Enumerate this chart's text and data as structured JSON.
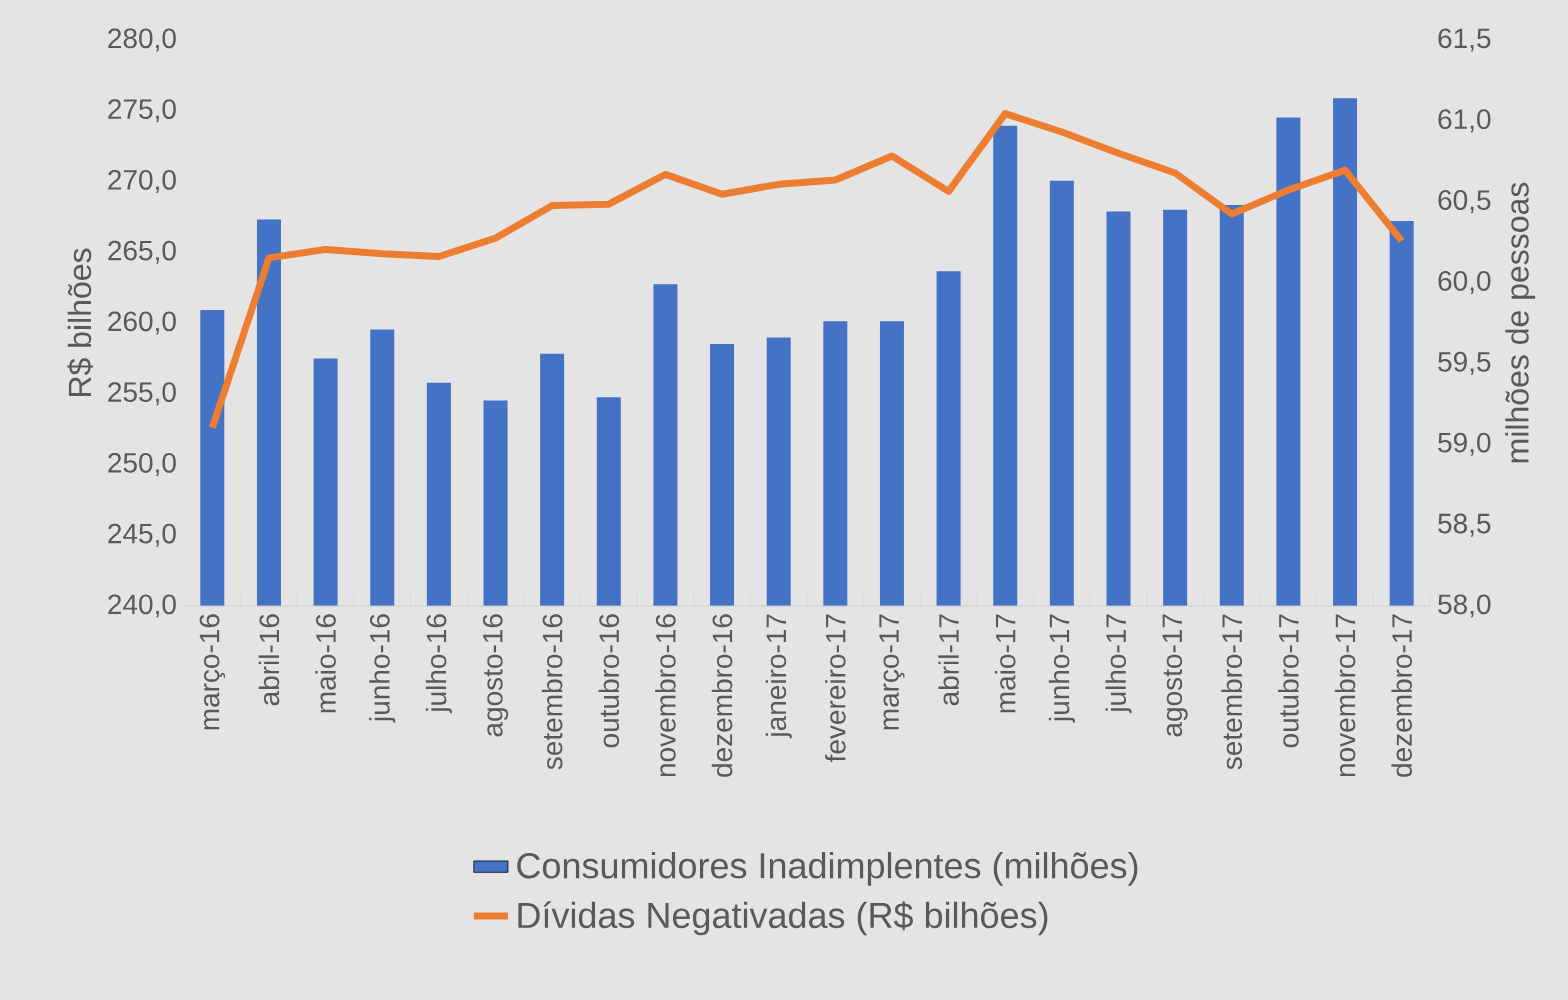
{
  "chart_data": {
    "type": "bar",
    "ylabel": "R$ bilhões",
    "y2label": "milhões de pessoas",
    "categories": [
      "março-16",
      "abril-16",
      "maio-16",
      "junho-16",
      "julho-16",
      "agosto-16",
      "setembro-16",
      "outubro-16",
      "novembro-16",
      "dezembro-16",
      "janeiro-17",
      "fevereiro-17",
      "março-17",
      "abril-17",
      "maio-17",
      "junho-17",
      "julho-17",
      "agosto-17",
      "setembro-17",
      "outubro-17",
      "novembro-17",
      "dezembro-17"
    ],
    "series": [
      {
        "name": "Consumidores Inadimplentes (milhões)",
        "axis": "y2",
        "color": "#4472c4",
        "values": [
          59.83,
          60.39,
          59.53,
          59.71,
          59.38,
          59.27,
          59.56,
          59.29,
          59.99,
          59.62,
          59.66,
          59.76,
          59.76,
          60.07,
          60.97,
          60.63,
          60.44,
          60.45,
          60.48,
          61.02,
          61.14,
          60.38
        ]
      },
      {
        "name": "Dívidas Negativadas (R$ bilhões)",
        "type": "line",
        "axis": "y",
        "color": "#ed7d31",
        "values": [
          252.6,
          264.6,
          265.2,
          264.9,
          264.7,
          266.0,
          268.3,
          268.4,
          270.5,
          269.1,
          269.8,
          270.1,
          271.8,
          269.3,
          274.8,
          273.5,
          272.0,
          270.6,
          267.7,
          269.4,
          270.8,
          265.8
        ]
      }
    ],
    "ylim": [
      240,
      280
    ],
    "yticks": [
      {
        "value": 240,
        "label": "240,0"
      },
      {
        "value": 245,
        "label": "245,0"
      },
      {
        "value": 250,
        "label": "250,0"
      },
      {
        "value": 255,
        "label": "255,0"
      },
      {
        "value": 260,
        "label": "260,0"
      },
      {
        "value": 265,
        "label": "265,0"
      },
      {
        "value": 270,
        "label": "270,0"
      },
      {
        "value": 275,
        "label": "275,0"
      },
      {
        "value": 280,
        "label": "280,0"
      }
    ],
    "y2lim": [
      58,
      61.5
    ],
    "y2ticks": [
      {
        "value": 58,
        "label": "58,0"
      },
      {
        "value": 58.5,
        "label": "58,5"
      },
      {
        "value": 59,
        "label": "59,0"
      },
      {
        "value": 59.5,
        "label": "59,5"
      },
      {
        "value": 60,
        "label": "60,0"
      },
      {
        "value": 60.5,
        "label": "60,5"
      },
      {
        "value": 61,
        "label": "61,0"
      },
      {
        "value": 61.5,
        "label": "61,5"
      }
    ],
    "legend": "bottom",
    "grid": false,
    "marker": "none",
    "line_style": "solid"
  }
}
